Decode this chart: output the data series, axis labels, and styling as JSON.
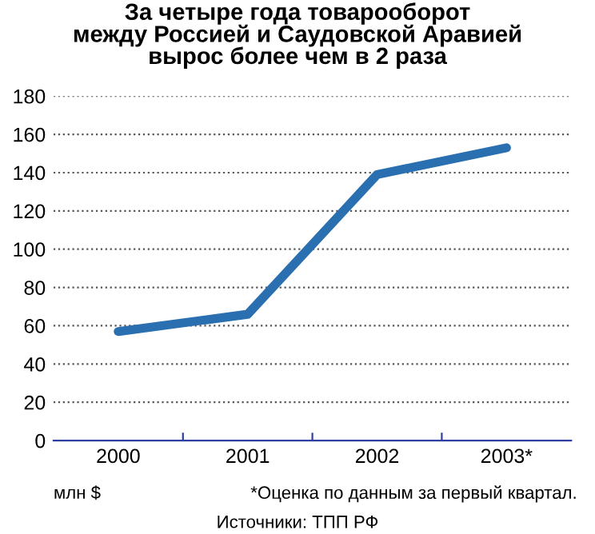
{
  "chart_data": {
    "type": "line",
    "title": "За четыре года товарооборот\nмежду Россией и Саудовской Аравией\nвырос более чем в 2 раза",
    "categories": [
      "2000",
      "2001",
      "2002",
      "2003*"
    ],
    "series": [
      {
        "color": "#2a6fb0",
        "values": [
          57,
          66,
          139,
          153
        ]
      }
    ],
    "ylim": [
      0,
      180
    ],
    "yticks": [
      0,
      20,
      40,
      60,
      80,
      100,
      120,
      140,
      160,
      180
    ],
    "grid": "y",
    "legend": false,
    "marker": "none",
    "line_style": "solid",
    "annotations": [
      "млн $",
      "*Оценка по данным за первый квартал.",
      "Источники: ТПП РФ"
    ]
  }
}
